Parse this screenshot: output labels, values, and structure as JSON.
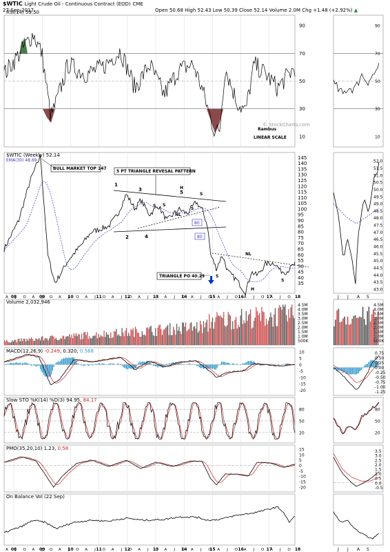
{
  "header": {
    "symbol": "$WTIC",
    "name": "Light Crude Oil - Continuous Contract (EOD)",
    "exchange": "CME",
    "date": "27-Sep-2017",
    "ohlc": "Open 50.68  High 52.43  Low 50.39  Close 52.14  Volume 2.0M  Chg +1.48 (+2.92%)",
    "up_arrow": "▲",
    "watermark": "© StockCharts.com"
  },
  "panels": {
    "rsi": {
      "label": "RSI(14) 59.50",
      "ticks": [
        "90",
        "70",
        "50",
        "30",
        "10"
      ],
      "inset_ticks": [
        "90",
        "70",
        "50",
        "30",
        "10"
      ],
      "levels": [
        70,
        30
      ]
    },
    "price": {
      "label": "$WTIC (Weekly) 52.14",
      "ema_label": "EMA(30) 48.69",
      "ticks": [
        "145",
        "140",
        "135",
        "130",
        "125",
        "120",
        "115",
        "110",
        "105",
        "100",
        "95",
        "90",
        "85",
        "80",
        "75",
        "70",
        "65",
        "60",
        "55",
        "50",
        "45",
        "40",
        "35"
      ],
      "inset_ticks": [
        "52.0",
        "51.5",
        "51.0",
        "50.5",
        "50.0",
        "49.5",
        "49.0",
        "48.5",
        "48.0",
        "47.5",
        "47.0",
        "46.5",
        "46.0",
        "45.5",
        "45.0",
        "44.5",
        "44.0",
        "43.5",
        "43.0"
      ]
    },
    "volume": {
      "label": "Volume 2,032,946",
      "ticks": [
        "4.5M",
        "4.0M",
        "3.5M",
        "3.0M",
        "2.5M",
        "2.0M",
        "1.5M",
        "1.0M",
        "500K"
      ]
    },
    "macd": {
      "label": "MACD(12,26,9) -0.249, 0.320, 0.568",
      "label_main": "MACD(12,26,9) ",
      "label_v1": "-0.249",
      "label_v2": ", 0.320, ",
      "label_v3": "0.568",
      "ticks": [
        "10",
        "5",
        "0",
        "-5",
        "-10",
        "-15",
        "-20"
      ],
      "inset_ticks": [
        "0.75",
        "0.50",
        "0.25",
        "0.00",
        "-0.25",
        "-0.50",
        "-0.75",
        "-1.00",
        "-1.25"
      ]
    },
    "sto": {
      "label_main": "Slow STO %K(14) %D(3) 94.95, ",
      "label_v": "84.17",
      "ticks": [
        "80",
        "50",
        "20"
      ],
      "inset_ticks": [
        "80",
        "50",
        "20"
      ]
    },
    "pmo": {
      "label_main": "PMO(35,20,10) 1.23, ",
      "label_v": "0.58",
      "ticks": [
        "15",
        "10",
        "5",
        "0",
        "-5",
        "-10",
        "-15",
        "-20"
      ],
      "inset_ticks": [
        "3.5",
        "3.0",
        "2.5",
        "2.0",
        "1.5",
        "1.0",
        "0.5",
        "0.0",
        "-0.5"
      ]
    },
    "obv": {
      "label": "On Balance Vol (22 Sep)"
    }
  },
  "annotations": {
    "rambus": "Rambus",
    "linear_scale": "LINEAR SCALE",
    "bull_market": "BULL MARKET TOP 147",
    "triangle_title": "5 PT TRIANGLE REVESAL PATTERN",
    "triangle_po": "TRIANGLE PO 40.29",
    "p1": "1",
    "p2": "2",
    "p3": "3",
    "p4": "4",
    "p5": "5",
    "h1": "H",
    "s1": "S",
    "s2": "S",
    "s3": "S",
    "s4": "S",
    "nl1": "NL",
    "h2": "H",
    "s5": "S",
    "s6": "S",
    "nl2": "NL",
    "box80a": "80",
    "box80b": "80"
  },
  "x_axis": {
    "years": [
      "08",
      "09",
      "10",
      "11",
      "12",
      "13",
      "14",
      "15",
      "16",
      "17",
      "18"
    ],
    "months": [
      "A",
      "J",
      "O",
      "A",
      "J",
      "O",
      "A",
      "J",
      "O",
      "A",
      "J",
      "O",
      "A",
      "J",
      "O",
      "A",
      "J",
      "O",
      "A",
      "J",
      "O",
      "A",
      "J",
      "O",
      "A",
      "J",
      "O",
      "A",
      "J",
      "O",
      "A",
      "J",
      "O"
    ],
    "inset_months": [
      "J",
      "J",
      "A",
      "S"
    ]
  },
  "colors": {
    "price": "#000000",
    "ema": "#3333cc",
    "rsi_fill": "#8b4a4a",
    "rsi_green": "#4a7a4a",
    "vol_up": "#cc4444",
    "vol_dn": "#555555",
    "hist": "#3399cc",
    "signal": "#cc2222",
    "arrow": "#0033cc",
    "grid": "#d8d8d8"
  },
  "chart_data": {
    "type": "line",
    "title": "$WTIC Light Crude Oil - Continuous Contract (EOD)",
    "x": [
      "2008",
      "2009",
      "2010",
      "2011",
      "2012",
      "2013",
      "2014",
      "2015",
      "2016",
      "2017"
    ],
    "series": [
      {
        "name": "$WTIC (Weekly)",
        "values": [
          147,
          35,
          85,
          113,
          100,
          92,
          105,
          45,
          27,
          52
        ]
      },
      {
        "name": "EMA(30)",
        "values": [
          120,
          55,
          78,
          100,
          98,
          93,
          102,
          58,
          38,
          48.69
        ]
      }
    ],
    "ylim": [
      30,
      147
    ],
    "last_close": 52.14
  }
}
